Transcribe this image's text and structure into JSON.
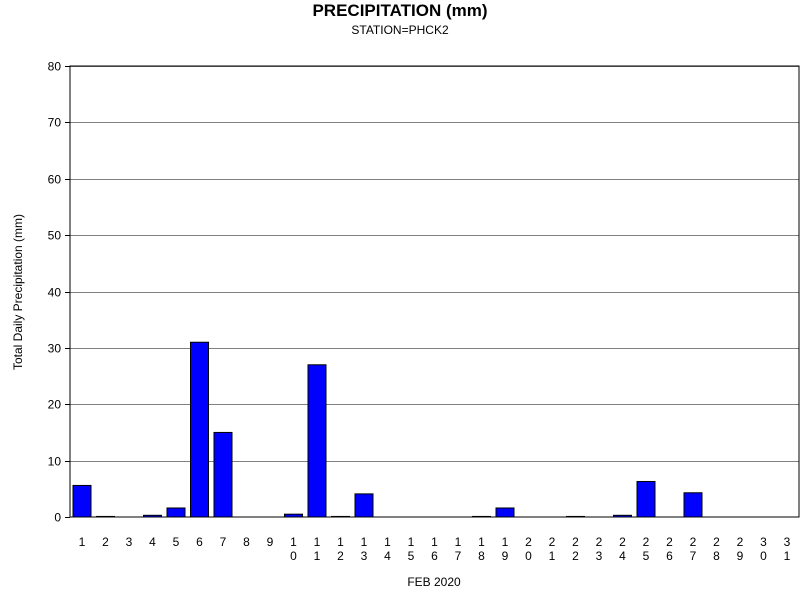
{
  "chart_data": {
    "type": "bar",
    "title": "PRECIPITATION (mm)",
    "subtitle": "STATION=PHCK2",
    "xlabel": "FEB 2020",
    "ylabel": "Total Daily Precipitation (mm)",
    "ylim": [
      0,
      80
    ],
    "yticks": [
      0,
      10,
      20,
      30,
      40,
      50,
      60,
      70,
      80
    ],
    "grid": true,
    "bar_color": "#0000ff",
    "categories": [
      "1",
      "2",
      "3",
      "4",
      "5",
      "6",
      "7",
      "8",
      "9",
      "10",
      "11",
      "12",
      "13",
      "14",
      "15",
      "16",
      "17",
      "18",
      "19",
      "20",
      "21",
      "22",
      "23",
      "24",
      "25",
      "26",
      "27",
      "28",
      "29",
      "30",
      "31"
    ],
    "values": [
      5.6,
      0.1,
      null,
      0.3,
      1.6,
      31.0,
      15.0,
      null,
      null,
      0.5,
      27.0,
      0.1,
      4.1,
      null,
      null,
      null,
      null,
      0.1,
      1.6,
      null,
      null,
      0.1,
      null,
      0.3,
      6.3,
      null,
      4.3,
      null,
      null,
      null,
      null
    ]
  }
}
